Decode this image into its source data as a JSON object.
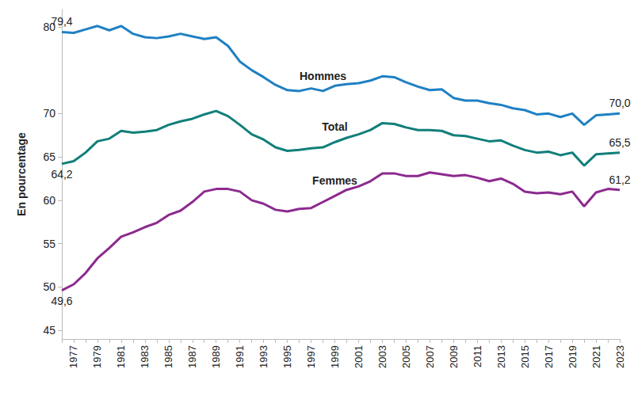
{
  "chart_data": {
    "type": "line",
    "y_label": "En pourcentage",
    "categories": [
      null,
      "1977",
      null,
      "1979",
      null,
      "1981",
      null,
      "1983",
      null,
      "1985",
      null,
      "1987",
      null,
      "1989",
      null,
      "1991",
      null,
      "1993",
      null,
      "1995",
      null,
      "1997",
      null,
      "1999",
      null,
      "2001",
      null,
      "2003",
      null,
      "2005",
      null,
      "2007",
      null,
      "2009",
      null,
      "2011",
      null,
      "2013",
      null,
      "2015",
      null,
      "2017",
      null,
      "2019",
      null,
      "2021",
      null,
      "2023"
    ],
    "series": [
      {
        "name": "Hommes",
        "color": "#1f80c3",
        "values": [
          79.4,
          79.3,
          79.7,
          80.1,
          79.6,
          80.1,
          79.2,
          78.8,
          78.7,
          78.9,
          79.2,
          78.9,
          78.6,
          78.8,
          77.8,
          76.0,
          75.0,
          74.2,
          73.3,
          72.7,
          72.6,
          72.9,
          72.6,
          73.2,
          73.4,
          73.5,
          73.8,
          74.3,
          74.2,
          73.6,
          73.1,
          72.7,
          72.8,
          71.8,
          71.5,
          71.5,
          71.2,
          71.0,
          70.6,
          70.4,
          69.9,
          70.0,
          69.6,
          70.0,
          68.7,
          69.8,
          69.9,
          70.0
        ],
        "value_labels": [
          "79,4",
          null,
          null,
          null,
          null,
          null,
          null,
          null,
          null,
          null,
          null,
          null,
          null,
          null,
          null,
          null,
          null,
          null,
          null,
          null,
          null,
          null,
          null,
          null,
          null,
          null,
          null,
          null,
          null,
          null,
          null,
          null,
          null,
          null,
          null,
          null,
          null,
          null,
          null,
          null,
          null,
          null,
          null,
          null,
          null,
          null,
          null,
          "70,0"
        ]
      },
      {
        "name": "Total",
        "color": "#117f7a",
        "values": [
          64.2,
          64.5,
          65.5,
          66.8,
          67.1,
          68.0,
          67.8,
          67.9,
          68.1,
          68.7,
          69.1,
          69.4,
          69.9,
          70.3,
          69.7,
          68.7,
          67.6,
          67.0,
          66.1,
          65.7,
          65.8,
          66.0,
          66.1,
          66.7,
          67.2,
          67.6,
          68.1,
          68.9,
          68.8,
          68.4,
          68.1,
          68.1,
          68.0,
          67.5,
          67.4,
          67.1,
          66.8,
          66.9,
          66.3,
          65.8,
          65.5,
          65.6,
          65.2,
          65.5,
          64.0,
          65.3,
          65.4,
          65.5
        ],
        "value_labels": [
          "64,2",
          null,
          null,
          null,
          null,
          null,
          null,
          null,
          null,
          null,
          null,
          null,
          null,
          null,
          null,
          null,
          null,
          null,
          null,
          null,
          null,
          null,
          null,
          null,
          null,
          null,
          null,
          null,
          null,
          null,
          null,
          null,
          null,
          null,
          null,
          null,
          null,
          null,
          null,
          null,
          null,
          null,
          null,
          null,
          null,
          null,
          null,
          "65,5"
        ]
      },
      {
        "name": "Femmes",
        "color": "#8c2a8f",
        "values": [
          49.6,
          50.3,
          51.6,
          53.3,
          54.5,
          55.8,
          56.3,
          56.9,
          57.4,
          58.3,
          58.8,
          59.8,
          61.0,
          61.3,
          61.3,
          61.0,
          60.0,
          59.6,
          58.9,
          58.7,
          59.0,
          59.1,
          59.8,
          60.5,
          61.2,
          61.6,
          62.2,
          63.1,
          63.1,
          62.8,
          62.8,
          63.2,
          63.0,
          62.8,
          62.9,
          62.6,
          62.2,
          62.5,
          61.9,
          61.0,
          60.8,
          60.9,
          60.7,
          61.0,
          59.3,
          60.9,
          61.3,
          61.2
        ],
        "value_labels": [
          "49,6",
          null,
          null,
          null,
          null,
          null,
          null,
          null,
          null,
          null,
          null,
          null,
          null,
          null,
          null,
          null,
          null,
          null,
          null,
          null,
          null,
          null,
          null,
          null,
          null,
          null,
          null,
          null,
          null,
          null,
          null,
          null,
          null,
          null,
          null,
          null,
          null,
          null,
          null,
          null,
          null,
          null,
          null,
          null,
          null,
          null,
          null,
          "61,2"
        ]
      }
    ],
    "ylim": [
      44,
      82
    ],
    "yticks": [
      45,
      50,
      55,
      60,
      65,
      70,
      80
    ],
    "grid": false
  }
}
